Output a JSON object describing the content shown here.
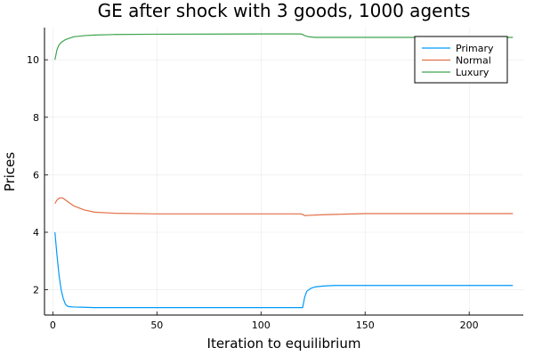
{
  "chart_data": {
    "type": "line",
    "title": "GE after shock with 3 goods, 1000 agents",
    "xlabel": "Iteration to equilibrium",
    "ylabel": "Prices",
    "xlim": [
      -4,
      226
    ],
    "ylim": [
      1.12,
      11.12
    ],
    "xticks": [
      0,
      50,
      100,
      150,
      200
    ],
    "yticks": [
      2,
      4,
      6,
      8,
      10
    ],
    "grid": true,
    "legend_position": "top-right",
    "series": [
      {
        "name": "Primary",
        "color": "#009af9",
        "x": [
          1,
          2,
          3,
          4,
          5,
          6,
          7,
          8,
          10,
          15,
          20,
          50,
          100,
          119,
          120,
          121,
          122,
          124,
          126,
          130,
          135,
          140,
          150,
          200,
          221
        ],
        "y": [
          4.0,
          3.2,
          2.5,
          2.0,
          1.7,
          1.5,
          1.43,
          1.41,
          1.4,
          1.39,
          1.38,
          1.38,
          1.38,
          1.38,
          1.38,
          1.75,
          1.95,
          2.05,
          2.1,
          2.13,
          2.15,
          2.15,
          2.15,
          2.15,
          2.15
        ]
      },
      {
        "name": "Normal",
        "color": "#e26f46",
        "x": [
          1,
          2,
          3,
          4,
          5,
          6,
          8,
          10,
          15,
          20,
          30,
          50,
          100,
          119,
          120,
          121,
          123,
          130,
          140,
          150,
          200,
          221
        ],
        "y": [
          5.0,
          5.12,
          5.18,
          5.2,
          5.18,
          5.13,
          5.02,
          4.92,
          4.78,
          4.7,
          4.66,
          4.64,
          4.64,
          4.64,
          4.62,
          4.58,
          4.59,
          4.61,
          4.63,
          4.65,
          4.65,
          4.65
        ]
      },
      {
        "name": "Luxury",
        "color": "#3da44d",
        "x": [
          1,
          2,
          3,
          4,
          5,
          6,
          8,
          10,
          15,
          20,
          30,
          50,
          100,
          119,
          120,
          121,
          123,
          126,
          130,
          140,
          150,
          200,
          221
        ],
        "y": [
          10.0,
          10.35,
          10.52,
          10.6,
          10.65,
          10.7,
          10.75,
          10.8,
          10.84,
          10.86,
          10.88,
          10.89,
          10.9,
          10.9,
          10.88,
          10.84,
          10.8,
          10.78,
          10.78,
          10.78,
          10.78,
          10.78,
          10.78
        ]
      }
    ]
  }
}
